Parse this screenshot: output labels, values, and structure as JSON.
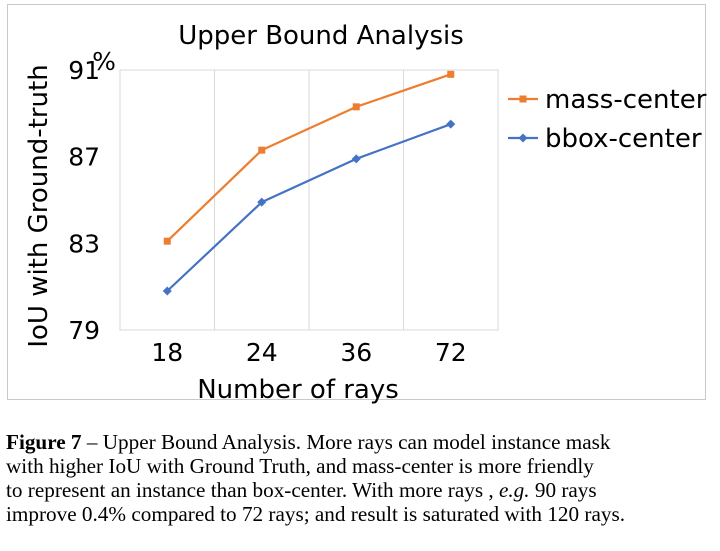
{
  "chart_data": {
    "type": "line",
    "title": "Upper Bound Analysis",
    "xlabel": "Number of rays",
    "ylabel": "IoU with Ground-truth",
    "yunit": "%",
    "categories": [
      "18",
      "24",
      "36",
      "72"
    ],
    "yticks": [
      79,
      83,
      87,
      91
    ],
    "ylim": [
      79,
      91
    ],
    "grid": "vertical",
    "legend": "right",
    "series": [
      {
        "name": "mass-center",
        "color": "#ed7d31",
        "marker": "square",
        "values": [
          83.1,
          87.3,
          89.3,
          90.8
        ]
      },
      {
        "name": "bbox-center",
        "color": "#4472c4",
        "marker": "diamond",
        "values": [
          80.8,
          84.9,
          86.9,
          88.5
        ]
      }
    ]
  },
  "caption": {
    "label": "Figure 7",
    "dash": "–",
    "line1": "Upper Bound Analysis. More rays can model instance mask",
    "line2": "with higher IoU with Ground Truth, and mass-center is more friendly",
    "line3": "to represent an instance than box-center. With more rays ,",
    "eg": "e.g.",
    "line3b": "90 rays",
    "line4": "improve 0.4% compared to 72 rays; and result is saturated with 120 rays."
  }
}
